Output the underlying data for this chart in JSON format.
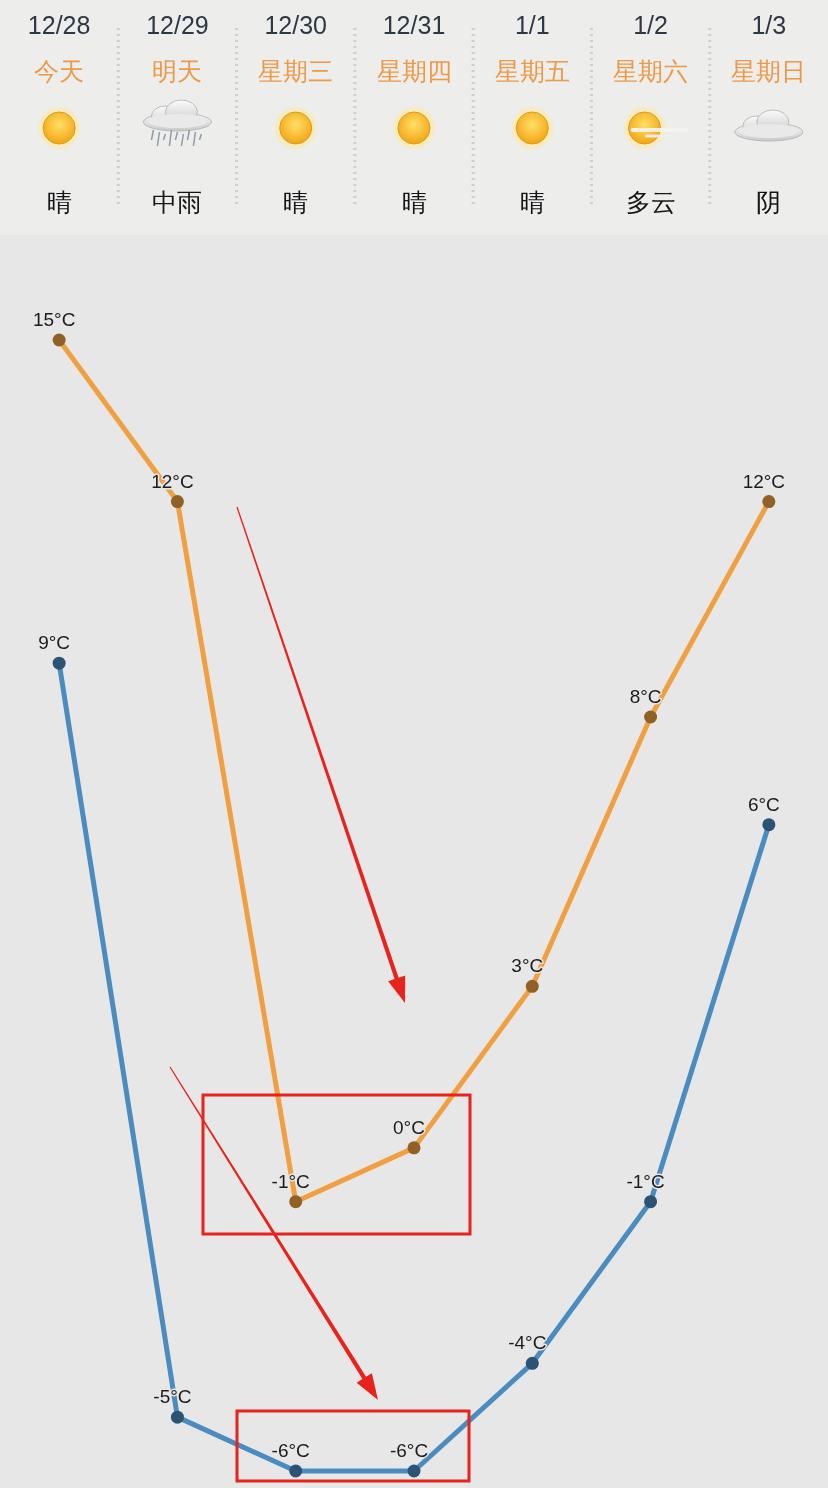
{
  "chart_data": {
    "type": "line",
    "marker": "circle",
    "line_style": "solid",
    "categories": [
      "12/28",
      "12/29",
      "12/30",
      "12/31",
      "1/1",
      "1/2",
      "1/3"
    ],
    "annotations": [
      "今天",
      "明天",
      "星期三",
      "星期四",
      "星期五",
      "星期六",
      "星期日",
      "晴",
      "中雨",
      "晴",
      "晴",
      "晴",
      "多云",
      "阴"
    ],
    "series": [
      {
        "color": "#f0a040",
        "values": [
          15,
          12,
          -1,
          0,
          3,
          8,
          12
        ],
        "value_labels": [
          "15°C",
          "12°C",
          "-1°C",
          "0°C",
          "3°C",
          "8°C",
          "12°C"
        ]
      },
      {
        "color": "#4a8bc0",
        "values": [
          9,
          -5,
          -6,
          -6,
          -4,
          -1,
          6
        ],
        "value_labels": [
          "9°C",
          "-5°C",
          "-6°C",
          "-6°C",
          "-4°C",
          "-1°C",
          "6°C"
        ]
      }
    ]
  }
}
